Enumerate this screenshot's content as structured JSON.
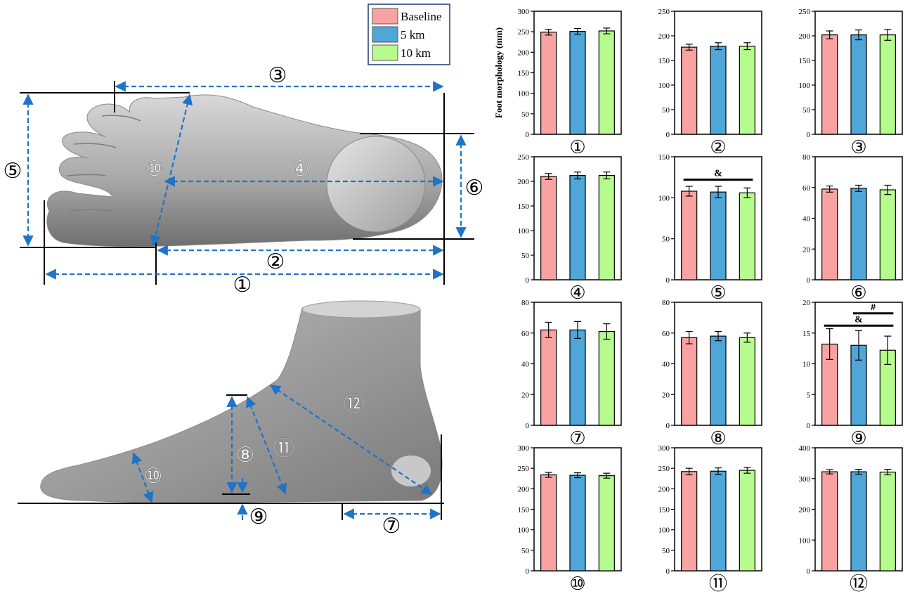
{
  "legend": {
    "placement": "top-center",
    "entries": [
      {
        "label": "Baseline",
        "color": "#f9a2a2"
      },
      {
        "label": "5 km",
        "color": "#4ea6d9"
      },
      {
        "label": "10 km",
        "color": "#b6fb8e"
      }
    ]
  },
  "diagram": {
    "top_view_labels": [
      "①",
      "②",
      "③",
      "④",
      "⑤",
      "⑥",
      "⑩"
    ],
    "side_view_labels": [
      "⑦",
      "⑧",
      "⑨",
      "⑩",
      "⑪",
      "⑫"
    ],
    "measure_color": "#1f73c8"
  },
  "chart_data": [
    {
      "type": "bar",
      "panel_label": "①",
      "ylabel": "Foot morphology (mm)",
      "ylim": [
        0,
        300
      ],
      "yticks": [
        0,
        50,
        100,
        150,
        200,
        250,
        300
      ],
      "categories": [
        "Baseline",
        "5 km",
        "10 km"
      ],
      "values": [
        249,
        251,
        252
      ],
      "errors": [
        7,
        7,
        7
      ],
      "annotations": []
    },
    {
      "type": "bar",
      "panel_label": "②",
      "ylabel": "",
      "ylim": [
        0,
        250
      ],
      "yticks": [
        0,
        50,
        100,
        150,
        200,
        250
      ],
      "categories": [
        "Baseline",
        "5 km",
        "10 km"
      ],
      "values": [
        177,
        179,
        179
      ],
      "errors": [
        6,
        7,
        7
      ],
      "annotations": []
    },
    {
      "type": "bar",
      "panel_label": "③",
      "ylabel": "",
      "ylim": [
        0,
        250
      ],
      "yticks": [
        0,
        50,
        100,
        150,
        200,
        250
      ],
      "categories": [
        "Baseline",
        "5 km",
        "10 km"
      ],
      "values": [
        202,
        202,
        202
      ],
      "errors": [
        8,
        10,
        11
      ],
      "annotations": []
    },
    {
      "type": "bar",
      "panel_label": "④",
      "ylabel": "",
      "ylim": [
        0,
        250
      ],
      "yticks": [
        0,
        50,
        100,
        150,
        200,
        250
      ],
      "categories": [
        "Baseline",
        "5 km",
        "10 km"
      ],
      "values": [
        210,
        212,
        212
      ],
      "errors": [
        6,
        7,
        7
      ],
      "annotations": []
    },
    {
      "type": "bar",
      "panel_label": "⑤",
      "ylabel": "",
      "ylim": [
        0,
        150
      ],
      "yticks": [
        0,
        50,
        100,
        150
      ],
      "categories": [
        "Baseline",
        "5 km",
        "10 km"
      ],
      "values": [
        108,
        107,
        106
      ],
      "errors": [
        6,
        7,
        6
      ],
      "annotations": [
        {
          "symbol": "&",
          "from": 0,
          "to": 2,
          "y": 122
        }
      ]
    },
    {
      "type": "bar",
      "panel_label": "⑥",
      "ylabel": "",
      "ylim": [
        0,
        80
      ],
      "yticks": [
        0,
        20,
        40,
        60,
        80
      ],
      "categories": [
        "Baseline",
        "5 km",
        "10 km"
      ],
      "values": [
        59,
        59.5,
        58.5
      ],
      "errors": [
        2,
        2,
        3
      ],
      "annotations": []
    },
    {
      "type": "bar",
      "panel_label": "⑦",
      "ylabel": "",
      "ylim": [
        0,
        80
      ],
      "yticks": [
        0,
        20,
        40,
        60,
        80
      ],
      "categories": [
        "Baseline",
        "5 km",
        "10 km"
      ],
      "values": [
        62,
        62,
        61
      ],
      "errors": [
        5,
        5.5,
        5
      ],
      "annotations": []
    },
    {
      "type": "bar",
      "panel_label": "⑧",
      "ylabel": "",
      "ylim": [
        0,
        80
      ],
      "yticks": [
        0,
        20,
        40,
        60,
        80
      ],
      "categories": [
        "Baseline",
        "5 km",
        "10 km"
      ],
      "values": [
        57,
        58,
        57
      ],
      "errors": [
        4,
        3,
        3
      ],
      "annotations": []
    },
    {
      "type": "bar",
      "panel_label": "⑨",
      "ylabel": "",
      "ylim": [
        0,
        20
      ],
      "yticks": [
        0,
        5,
        10,
        15,
        20
      ],
      "categories": [
        "Baseline",
        "5 km",
        "10 km"
      ],
      "values": [
        13.2,
        13,
        12.2
      ],
      "errors": [
        2.5,
        2.4,
        2.3
      ],
      "annotations": [
        {
          "symbol": "&",
          "from": 0,
          "to": 2,
          "y": 16.2
        },
        {
          "symbol": "#",
          "from": 1,
          "to": 2,
          "y": 18.2
        }
      ]
    },
    {
      "type": "bar",
      "panel_label": "⑩",
      "ylabel": "",
      "ylim": [
        0,
        300
      ],
      "yticks": [
        0,
        50,
        100,
        150,
        200,
        250,
        300
      ],
      "categories": [
        "Baseline",
        "5 km",
        "10 km"
      ],
      "values": [
        234,
        233,
        232
      ],
      "errors": [
        6,
        6,
        6
      ],
      "annotations": []
    },
    {
      "type": "bar",
      "panel_label": "⑪",
      "ylabel": "",
      "ylim": [
        0,
        300
      ],
      "yticks": [
        0,
        50,
        100,
        150,
        200,
        250,
        300
      ],
      "categories": [
        "Baseline",
        "5 km",
        "10 km"
      ],
      "values": [
        242,
        243,
        245
      ],
      "errors": [
        8,
        8,
        7
      ],
      "annotations": []
    },
    {
      "type": "bar",
      "panel_label": "⑫",
      "ylabel": "",
      "ylim": [
        0,
        400
      ],
      "yticks": [
        0,
        100,
        200,
        300,
        400
      ],
      "categories": [
        "Baseline",
        "5 km",
        "10 km"
      ],
      "values": [
        322,
        322,
        321
      ],
      "errors": [
        7,
        8,
        9
      ],
      "annotations": []
    }
  ]
}
